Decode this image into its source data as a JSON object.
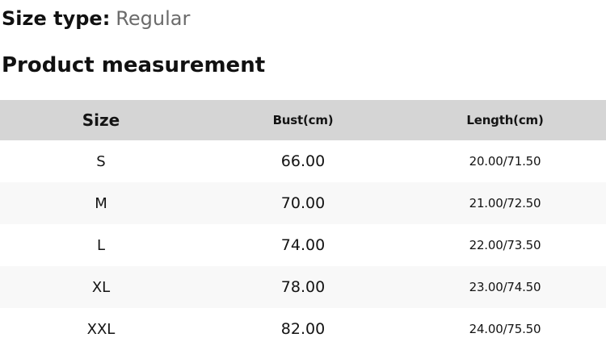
{
  "header": {
    "size_type_label": "Size type:",
    "size_type_value": "Regular",
    "section_title": "Product measurement"
  },
  "table": {
    "columns": [
      "Size",
      "Bust(cm)",
      "Length(cm)"
    ],
    "rows": [
      {
        "size": "S",
        "bust": "66.00",
        "length": "20.00/71.50"
      },
      {
        "size": "M",
        "bust": "70.00",
        "length": "21.00/72.50"
      },
      {
        "size": "L",
        "bust": "74.00",
        "length": "22.00/73.50"
      },
      {
        "size": "XL",
        "bust": "78.00",
        "length": "23.00/74.50"
      },
      {
        "size": "XXL",
        "bust": "82.00",
        "length": "24.00/75.50"
      }
    ]
  },
  "colors": {
    "header_row_bg": "#d5d5d5",
    "stripe_row_bg": "#f8f8f8",
    "text": "#111111",
    "muted_text": "#6b6b6b"
  }
}
